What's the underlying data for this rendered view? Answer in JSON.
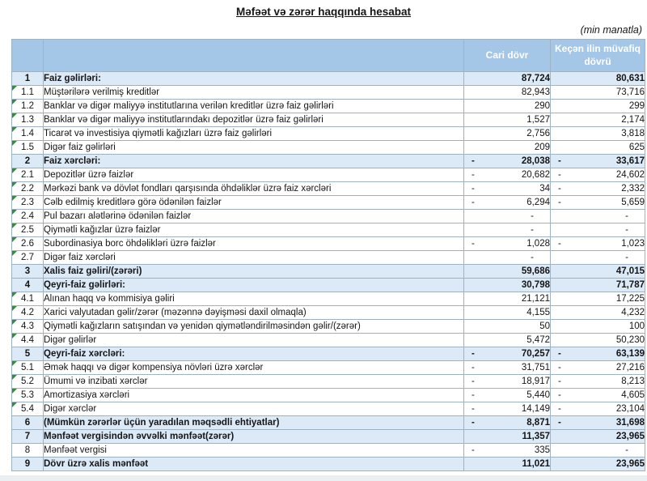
{
  "title": "Məfəət və zərər haqqında hesabat",
  "unit_note": "(min manatla)",
  "colors": {
    "header_bg": "#A4C7E7",
    "header_text": "#FFFFFF",
    "total_row_bg": "#DCE9F6",
    "row_bg": "#FFFFFF",
    "border": "#9FB2C3",
    "marker": "#358C3F",
    "text": "#151515"
  },
  "table": {
    "columns": {
      "current": "Cari dövr",
      "previous": "Keçən ilin müvafiq dövrü"
    },
    "rows": [
      {
        "num": "1",
        "label": "Faiz gəlirləri:",
        "bold": true,
        "marker": false,
        "cur": {
          "neg": false,
          "val": "87,724"
        },
        "prev": {
          "neg": false,
          "val": "80,631"
        }
      },
      {
        "num": "1.1",
        "label": "Müştərilərə verilmiş kreditlər",
        "bold": false,
        "marker": true,
        "cur": {
          "neg": false,
          "val": "82,943"
        },
        "prev": {
          "neg": false,
          "val": "73,716"
        }
      },
      {
        "num": "1.2",
        "label": "Banklar və digər maliyyə institutlarına verilən kreditlər üzrə faiz gəlirləri",
        "bold": false,
        "marker": true,
        "cur": {
          "neg": false,
          "val": "290"
        },
        "prev": {
          "neg": false,
          "val": "299"
        }
      },
      {
        "num": "1.3",
        "label": "Banklar və digər maliyyə institutlarındakı depozitlər üzrə faiz gəlirləri",
        "bold": false,
        "marker": true,
        "cur": {
          "neg": false,
          "val": "1,527"
        },
        "prev": {
          "neg": false,
          "val": "2,174"
        }
      },
      {
        "num": "1.4",
        "label": "Ticarət və investisiya qiymətli kağızları üzrə faiz gəlirləri",
        "bold": false,
        "marker": true,
        "cur": {
          "neg": false,
          "val": "2,756"
        },
        "prev": {
          "neg": false,
          "val": "3,818"
        }
      },
      {
        "num": "1.5",
        "label": "Digər faiz gəlirləri",
        "bold": false,
        "marker": true,
        "cur": {
          "neg": false,
          "val": "209"
        },
        "prev": {
          "neg": false,
          "val": "625"
        }
      },
      {
        "num": "2",
        "label": "Faiz xərcləri:",
        "bold": true,
        "marker": false,
        "cur": {
          "neg": true,
          "val": "28,038"
        },
        "prev": {
          "neg": true,
          "val": "33,617"
        }
      },
      {
        "num": "2.1",
        "label": "Depozitlər üzrə faizlər",
        "bold": false,
        "marker": true,
        "cur": {
          "neg": true,
          "val": "20,682"
        },
        "prev": {
          "neg": true,
          "val": "24,602"
        }
      },
      {
        "num": "2.2",
        "label": "Mərkəzi bank və dövlət fondları qarşısında öhdəliklər üzrə faiz xərcləri",
        "bold": false,
        "marker": true,
        "cur": {
          "neg": true,
          "val": "34"
        },
        "prev": {
          "neg": true,
          "val": "2,332"
        }
      },
      {
        "num": "2.3",
        "label": "Cəlb edilmiş kreditlərə görə ödənilən faizlər",
        "bold": false,
        "marker": true,
        "cur": {
          "neg": true,
          "val": "6,294"
        },
        "prev": {
          "neg": true,
          "val": "5,659"
        }
      },
      {
        "num": "2.4",
        "label": "Pul bazarı alətlərinə ödənilən faizlər",
        "bold": false,
        "marker": true,
        "cur": {
          "neg": false,
          "val": "-"
        },
        "prev": {
          "neg": false,
          "val": "-"
        }
      },
      {
        "num": "2.5",
        "label": "Qiymətli kağızlar üzrə faizlər",
        "bold": false,
        "marker": true,
        "cur": {
          "neg": false,
          "val": "-"
        },
        "prev": {
          "neg": false,
          "val": "-"
        }
      },
      {
        "num": "2.6",
        "label": "Subordinasiya borc öhdəlikləri üzrə faizlər",
        "bold": false,
        "marker": true,
        "cur": {
          "neg": true,
          "val": "1,028"
        },
        "prev": {
          "neg": true,
          "val": "1,023"
        }
      },
      {
        "num": "2.7",
        "label": "Digər faiz xərcləri",
        "bold": false,
        "marker": true,
        "cur": {
          "neg": false,
          "val": "-"
        },
        "prev": {
          "neg": false,
          "val": "-"
        }
      },
      {
        "num": "3",
        "label": "Xalis faiz gəliri/(zərəri)",
        "bold": true,
        "marker": false,
        "cur": {
          "neg": false,
          "val": "59,686"
        },
        "prev": {
          "neg": false,
          "val": "47,015"
        }
      },
      {
        "num": "4",
        "label": "Qeyri-faiz gəlirləri:",
        "bold": true,
        "marker": false,
        "cur": {
          "neg": false,
          "val": "30,798"
        },
        "prev": {
          "neg": false,
          "val": "71,787"
        }
      },
      {
        "num": "4.1",
        "label": "Alınan haqq və kommisiya gəliri",
        "bold": false,
        "marker": true,
        "cur": {
          "neg": false,
          "val": "21,121"
        },
        "prev": {
          "neg": false,
          "val": "17,225"
        }
      },
      {
        "num": "4.2",
        "label": "Xarici valyutadan gəlir/zərər (məzənnə dəyişməsi daxil olmaqla)",
        "bold": false,
        "marker": true,
        "cur": {
          "neg": false,
          "val": "4,155"
        },
        "prev": {
          "neg": false,
          "val": "4,232"
        }
      },
      {
        "num": "4.3",
        "label": "Qiymətli kağızların satışından və yenidən qiymətləndirilməsindən gəlir/(zərər)",
        "bold": false,
        "marker": true,
        "cur": {
          "neg": false,
          "val": "50"
        },
        "prev": {
          "neg": false,
          "val": "100"
        }
      },
      {
        "num": "4.4",
        "label": "Digər gəlirlər",
        "bold": false,
        "marker": true,
        "cur": {
          "neg": false,
          "val": "5,472"
        },
        "prev": {
          "neg": false,
          "val": "50,230"
        }
      },
      {
        "num": "5",
        "label": "Qeyri-faiz xərcləri:",
        "bold": true,
        "marker": false,
        "cur": {
          "neg": true,
          "val": "70,257"
        },
        "prev": {
          "neg": true,
          "val": "63,139"
        }
      },
      {
        "num": "5.1",
        "label": "Əmək haqqı və digər kompensiya növləri üzrə xərclər",
        "bold": false,
        "marker": true,
        "cur": {
          "neg": true,
          "val": "31,751"
        },
        "prev": {
          "neg": true,
          "val": "27,216"
        }
      },
      {
        "num": "5.2",
        "label": "Ümumi və inzibati xərclər",
        "bold": false,
        "marker": true,
        "cur": {
          "neg": true,
          "val": "18,917"
        },
        "prev": {
          "neg": true,
          "val": "8,213"
        }
      },
      {
        "num": "5.3",
        "label": "Amortizasiya xərcləri",
        "bold": false,
        "marker": true,
        "cur": {
          "neg": true,
          "val": "5,440"
        },
        "prev": {
          "neg": true,
          "val": "4,605"
        }
      },
      {
        "num": "5.4",
        "label": "Digər xərclər",
        "bold": false,
        "marker": true,
        "cur": {
          "neg": true,
          "val": "14,149"
        },
        "prev": {
          "neg": true,
          "val": "23,104"
        }
      },
      {
        "num": "6",
        "label": "(Mümkün zərərlər üçün yaradılan məqsədli ehtiyatlar)",
        "bold": true,
        "marker": false,
        "cur": {
          "neg": true,
          "val": "8,871"
        },
        "prev": {
          "neg": true,
          "val": "31,698"
        }
      },
      {
        "num": "7",
        "label": "Mənfəət vergisindən əvvəlki mənfəət(zərər)",
        "bold": true,
        "marker": false,
        "cur": {
          "neg": false,
          "val": "11,357"
        },
        "prev": {
          "neg": false,
          "val": "23,965"
        }
      },
      {
        "num": "8",
        "label": "Mənfəət vergisi",
        "bold": false,
        "marker": false,
        "cur": {
          "neg": true,
          "val": "335"
        },
        "prev": {
          "neg": false,
          "val": "-"
        }
      },
      {
        "num": "9",
        "label": "Dövr üzrə xalis mənfəət",
        "bold": true,
        "marker": false,
        "cur": {
          "neg": false,
          "val": "11,021"
        },
        "prev": {
          "neg": false,
          "val": "23,965"
        }
      }
    ]
  }
}
